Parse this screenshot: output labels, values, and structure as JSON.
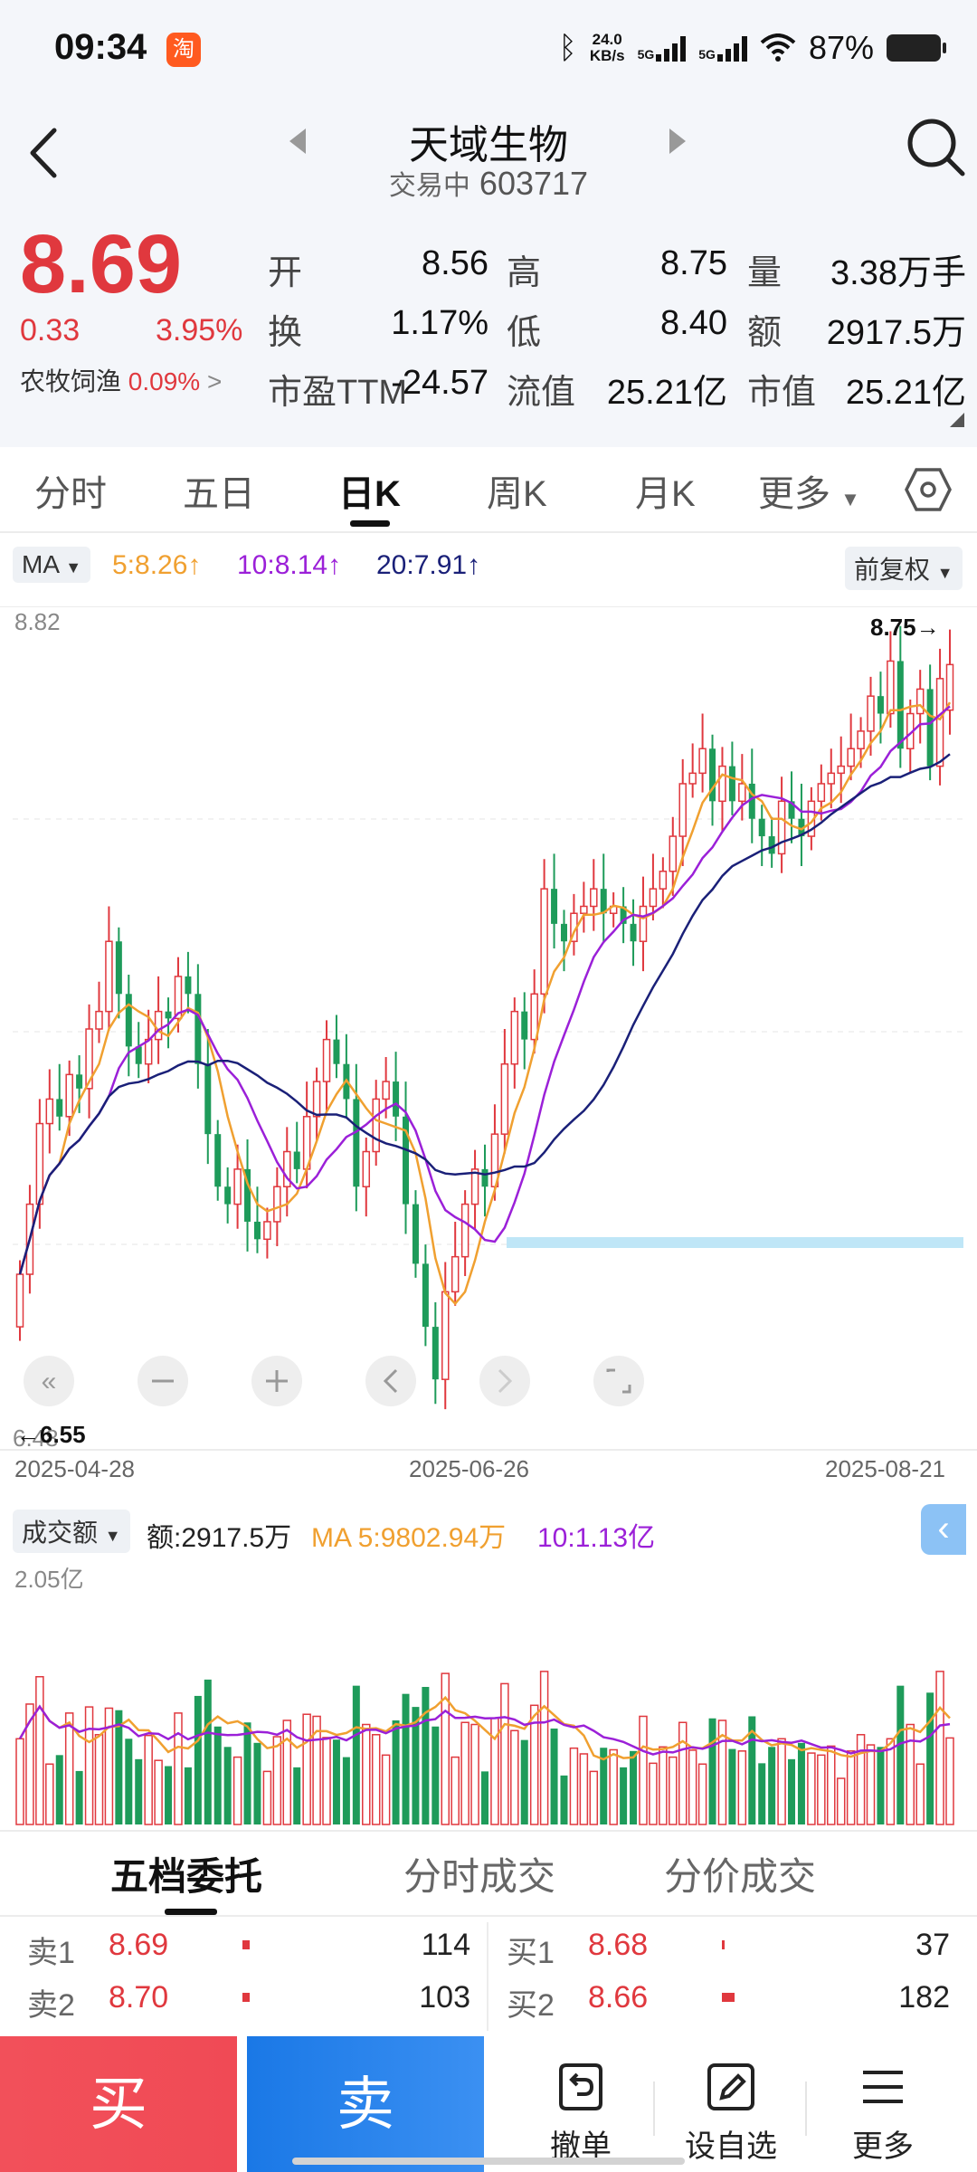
{
  "status": {
    "time": "09:34",
    "app_badge": "淘",
    "speed_value": "24.0",
    "speed_unit": "KB/s",
    "net1": "5G",
    "net2": "5G",
    "battery": "87%"
  },
  "header": {
    "title": "天域生物",
    "status_text": "交易中",
    "code": "603717"
  },
  "quote": {
    "price": "8.69",
    "change": "0.33",
    "change_pct": "3.95%",
    "sector_name": "农牧饲渔",
    "sector_pct": "0.09%",
    "sector_arrow": ">",
    "fields": [
      {
        "label": "开",
        "value": "8.56",
        "color": "red"
      },
      {
        "label": "高",
        "value": "8.75",
        "color": "red"
      },
      {
        "label": "量",
        "value": "3.38万手",
        "color": "black"
      },
      {
        "label": "换",
        "value": "1.17%",
        "color": "black"
      },
      {
        "label": "低",
        "value": "8.40",
        "color": "red"
      },
      {
        "label": "额",
        "value": "2917.5万",
        "color": "black"
      },
      {
        "label": "市盈TTM",
        "value": "-24.57",
        "color": "black"
      },
      {
        "label": "流值",
        "value": "25.21亿",
        "color": "black"
      },
      {
        "label": "市值",
        "value": "25.21亿",
        "color": "black"
      }
    ]
  },
  "tabs": [
    "分时",
    "五日",
    "日K",
    "周K",
    "月K",
    "更多"
  ],
  "active_tab": "日K",
  "ma": {
    "selector": "MA",
    "ma5": "5:8.26",
    "ma10": "10:8.14",
    "ma20": "20:7.91",
    "arrow": "↑",
    "adjust": "前复权"
  },
  "colors": {
    "up": "#e0383e",
    "down": "#1e9b5a",
    "ma5": "#f0a030",
    "ma10": "#9b20d8",
    "ma20": "#1a2078",
    "accent_blue": "#1a6fd8"
  },
  "chart_data": [
    {
      "type": "candlestick",
      "y_max_label": "8.82",
      "y_min_label": "6.48",
      "high_marker": "8.75→",
      "low_marker": "←6.55",
      "x_tick_labels": [
        "2025-04-28",
        "2025-06-26",
        "2025-08-21"
      ],
      "ylim": [
        6.48,
        8.82
      ],
      "series_ma": [
        "MA5",
        "MA10",
        "MA20"
      ],
      "closes": [
        6.95,
        7.15,
        7.38,
        7.45,
        7.4,
        7.52,
        7.48,
        7.65,
        7.7,
        7.9,
        7.75,
        7.6,
        7.55,
        7.62,
        7.7,
        7.68,
        7.8,
        7.75,
        7.55,
        7.35,
        7.2,
        7.15,
        7.25,
        7.1,
        7.05,
        7.1,
        7.2,
        7.3,
        7.25,
        7.4,
        7.5,
        7.62,
        7.55,
        7.45,
        7.2,
        7.3,
        7.45,
        7.5,
        7.4,
        7.15,
        6.98,
        6.8,
        6.65,
        6.9,
        7.0,
        7.15,
        7.25,
        7.2,
        7.35,
        7.55,
        7.7,
        7.62,
        7.75,
        8.05,
        7.95,
        7.9,
        7.98,
        8.0,
        8.05,
        7.98,
        8.0,
        7.95,
        7.9,
        8.0,
        8.05,
        8.1,
        8.2,
        8.35,
        8.38,
        8.45,
        8.3,
        8.4,
        8.3,
        8.35,
        8.25,
        8.2,
        8.15,
        8.3,
        8.25,
        8.2,
        8.3,
        8.35,
        8.38,
        8.4,
        8.45,
        8.5,
        8.6,
        8.55,
        8.7,
        8.45,
        8.55,
        8.62,
        8.4,
        8.65,
        8.69
      ],
      "opens": [
        6.8,
        6.95,
        7.15,
        7.38,
        7.45,
        7.4,
        7.52,
        7.48,
        7.65,
        7.7,
        7.9,
        7.75,
        7.6,
        7.55,
        7.62,
        7.7,
        7.68,
        7.8,
        7.75,
        7.55,
        7.35,
        7.2,
        7.15,
        7.25,
        7.1,
        7.05,
        7.1,
        7.2,
        7.3,
        7.25,
        7.4,
        7.5,
        7.62,
        7.55,
        7.45,
        7.2,
        7.3,
        7.45,
        7.5,
        7.4,
        7.15,
        6.98,
        6.8,
        6.65,
        6.9,
        7.0,
        7.15,
        7.25,
        7.2,
        7.35,
        7.55,
        7.7,
        7.62,
        7.75,
        8.05,
        7.95,
        7.9,
        7.98,
        8.0,
        8.05,
        7.98,
        8.0,
        7.95,
        7.9,
        8.0,
        8.05,
        8.1,
        8.2,
        8.35,
        8.38,
        8.45,
        8.3,
        8.4,
        8.3,
        8.35,
        8.25,
        8.2,
        8.15,
        8.3,
        8.25,
        8.2,
        8.3,
        8.35,
        8.38,
        8.4,
        8.45,
        8.5,
        8.6,
        8.55,
        8.7,
        8.45,
        8.55,
        8.62,
        8.4,
        8.56
      ]
    },
    {
      "type": "bar",
      "title": "成交额",
      "amount_label": "额:2917.5万",
      "ma5_label": "MA 5:9802.94万",
      "ma10_label": "10:1.13亿",
      "y_max_label": "2.05亿"
    }
  ],
  "orderbook": {
    "tabs": [
      "五档委托",
      "分时成交",
      "分价成交"
    ],
    "sell": [
      {
        "label": "卖1",
        "price": "8.69",
        "qty": "114"
      },
      {
        "label": "卖2",
        "price": "8.70",
        "qty": "103"
      }
    ],
    "buy": [
      {
        "label": "买1",
        "price": "8.68",
        "qty": "37"
      },
      {
        "label": "买2",
        "price": "8.66",
        "qty": "182"
      }
    ]
  },
  "bottom": {
    "buy": "买",
    "sell": "卖",
    "cancel": "撤单",
    "watch": "设自选",
    "more": "更多"
  }
}
